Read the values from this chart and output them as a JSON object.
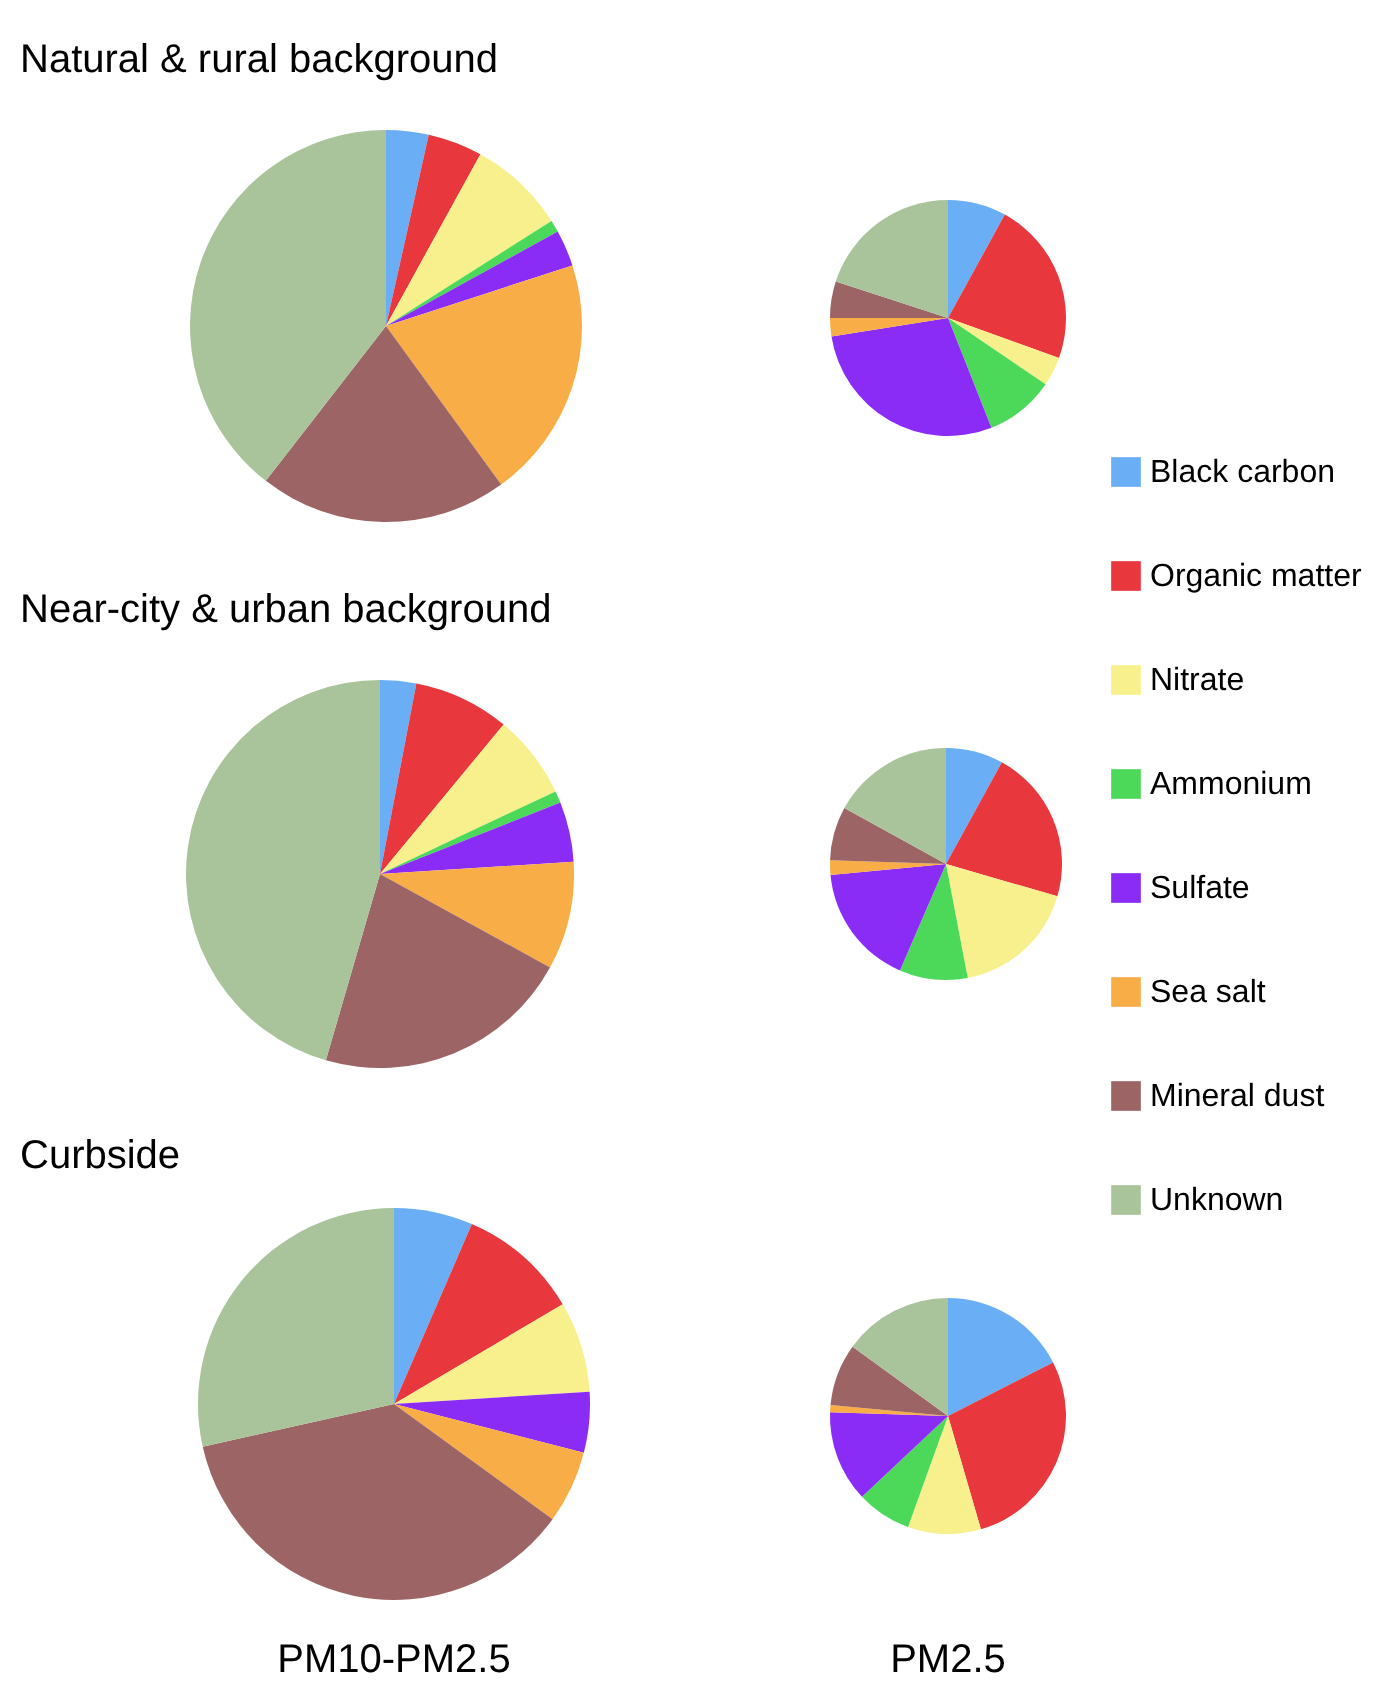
{
  "chart_data": [
    {
      "type": "pie",
      "title": "Natural & rural background",
      "legend": "right",
      "categories": [
        "Black carbon",
        "Organic matter",
        "Nitrate",
        "Ammonium",
        "Sulfate",
        "Sea salt",
        "Mineral dust",
        "Unknown"
      ],
      "values": [
        3.5,
        4.5,
        8,
        1,
        3,
        20,
        20.5,
        39.5
      ],
      "colors": [
        "#6aaef5",
        "#e8383d",
        "#f8f08c",
        "#4cd95a",
        "#8a2cf5",
        "#f9ad46",
        "#9c6465",
        "#a9c39a"
      ]
    },
    {
      "type": "pie",
      "categories": [
        null,
        null,
        null,
        null,
        null,
        null,
        null,
        null
      ],
      "values": [
        8,
        22.5,
        4,
        9.5,
        28.5,
        2.5,
        5,
        20
      ],
      "colors": [
        "#6aaef5",
        "#e8383d",
        "#f8f08c",
        "#4cd95a",
        "#8a2cf5",
        "#f9ad46",
        "#9c6465",
        "#a9c39a"
      ]
    },
    {
      "type": "pie",
      "title": "Near-city & urban background",
      "categories": [
        null,
        null,
        null,
        null,
        null,
        null,
        null,
        null
      ],
      "values": [
        3,
        8,
        7,
        1,
        5,
        9,
        21.5,
        45.5
      ],
      "colors": [
        "#6aaef5",
        "#e8383d",
        "#f8f08c",
        "#4cd95a",
        "#8a2cf5",
        "#f9ad46",
        "#9c6465",
        "#a9c39a"
      ]
    },
    {
      "type": "pie",
      "categories": [
        null,
        null,
        null,
        null,
        null,
        null,
        null,
        null
      ],
      "values": [
        8,
        21.5,
        17.5,
        9.5,
        17,
        2,
        7.5,
        17
      ],
      "colors": [
        "#6aaef5",
        "#e8383d",
        "#f8f08c",
        "#4cd95a",
        "#8a2cf5",
        "#f9ad46",
        "#9c6465",
        "#a9c39a"
      ]
    },
    {
      "type": "pie",
      "title": "Curbside",
      "xlabel": "PM10-PM2.5",
      "categories": [
        null,
        null,
        null,
        null,
        null,
        null,
        null,
        null
      ],
      "values": [
        6.5,
        10,
        7.5,
        0,
        5,
        6,
        36.5,
        28.5
      ],
      "colors": [
        "#6aaef5",
        "#e8383d",
        "#f8f08c",
        "#4cd95a",
        "#8a2cf5",
        "#f9ad46",
        "#9c6465",
        "#a9c39a"
      ]
    },
    {
      "type": "pie",
      "xlabel": "PM2.5",
      "categories": [
        null,
        null,
        null,
        null,
        null,
        null,
        null,
        null
      ],
      "values": [
        17.5,
        28,
        10,
        7.5,
        12.5,
        1,
        8.5,
        15
      ],
      "colors": [
        "#6aaef5",
        "#e8383d",
        "#f8f08c",
        "#4cd95a",
        "#8a2cf5",
        "#f9ad46",
        "#9c6465",
        "#a9c39a"
      ]
    }
  ]
}
